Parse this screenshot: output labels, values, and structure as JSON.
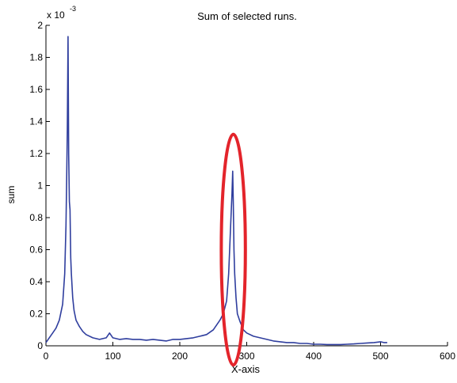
{
  "chart_data": {
    "type": "line",
    "title": "Sum of selected runs.",
    "xlabel": "X-axis",
    "ylabel": "sum",
    "y_exponent_label": "x 10",
    "y_exponent_power": "-3",
    "xlim": [
      0,
      600
    ],
    "ylim": [
      0,
      2
    ],
    "x_ticks": [
      0,
      100,
      200,
      300,
      400,
      500,
      600
    ],
    "y_ticks": [
      0,
      0.2,
      0.4,
      0.6,
      0.8,
      1,
      1.2,
      1.4,
      1.6,
      1.8,
      2
    ],
    "x_tick_labels": [
      "0",
      "100",
      "200",
      "300",
      "400",
      "500",
      "600"
    ],
    "y_tick_labels": [
      "0",
      "0.2",
      "0.4",
      "0.6",
      "0.8",
      "1",
      "1.2",
      "1.4",
      "1.6",
      "1.8",
      "2"
    ],
    "grid": false,
    "line_color": "#2f3e9e",
    "highlight_color": "#e3242b",
    "series": [
      {
        "x": [
          0,
          5,
          10,
          15,
          20,
          25,
          28,
          30,
          31,
          32,
          33,
          34,
          35,
          36,
          37,
          38,
          40,
          42,
          45,
          50,
          55,
          60,
          70,
          80,
          90,
          95,
          100,
          110,
          120,
          130,
          140,
          150,
          160,
          170,
          180,
          190,
          200,
          210,
          220,
          230,
          240,
          250,
          255,
          260,
          265,
          270,
          273,
          276,
          278,
          279,
          280,
          281,
          282,
          284,
          286,
          290,
          295,
          300,
          310,
          320,
          330,
          340,
          350,
          360,
          370,
          380,
          390,
          400,
          410,
          420,
          430,
          440,
          450,
          460,
          470,
          480,
          490,
          500,
          505,
          510
        ],
        "values": [
          0.02,
          0.05,
          0.08,
          0.11,
          0.16,
          0.26,
          0.45,
          0.75,
          1.05,
          1.35,
          1.93,
          1.2,
          0.9,
          0.85,
          0.55,
          0.45,
          0.3,
          0.22,
          0.16,
          0.12,
          0.09,
          0.07,
          0.05,
          0.04,
          0.05,
          0.08,
          0.05,
          0.04,
          0.045,
          0.04,
          0.04,
          0.035,
          0.04,
          0.035,
          0.03,
          0.04,
          0.04,
          0.045,
          0.05,
          0.06,
          0.07,
          0.1,
          0.13,
          0.16,
          0.2,
          0.28,
          0.45,
          0.75,
          0.95,
          1.09,
          0.88,
          0.6,
          0.45,
          0.3,
          0.2,
          0.15,
          0.1,
          0.08,
          0.06,
          0.05,
          0.04,
          0.03,
          0.025,
          0.02,
          0.02,
          0.015,
          0.015,
          0.01,
          0.01,
          0.008,
          0.008,
          0.008,
          0.01,
          0.012,
          0.015,
          0.018,
          0.02,
          0.025,
          0.02,
          0.02
        ]
      }
    ],
    "highlight_ellipse": {
      "cx": 280,
      "cy": 0.6,
      "rx": 18,
      "ry": 0.72
    }
  }
}
